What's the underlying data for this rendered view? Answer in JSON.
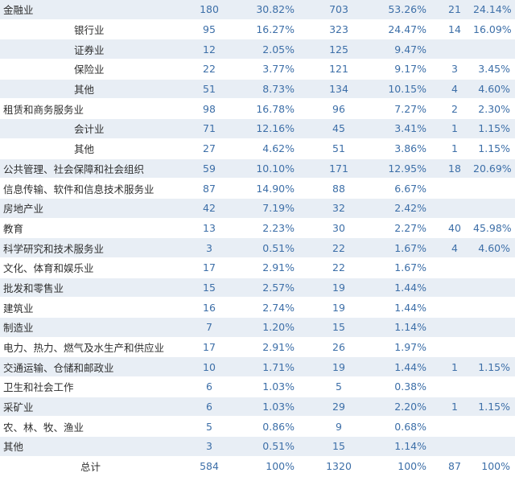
{
  "rows": [
    {
      "name": "金融业",
      "sub": false,
      "n1": "180",
      "p1": "30.82%",
      "n2": "703",
      "p2": "53.26%",
      "n3": "21",
      "p3": "24.14%"
    },
    {
      "name": "银行业",
      "sub": true,
      "n1": "95",
      "p1": "16.27%",
      "n2": "323",
      "p2": "24.47%",
      "n3": "14",
      "p3": "16.09%"
    },
    {
      "name": "证券业",
      "sub": true,
      "n1": "12",
      "p1": "2.05%",
      "n2": "125",
      "p2": "9.47%",
      "n3": "",
      "p3": ""
    },
    {
      "name": "保险业",
      "sub": true,
      "n1": "22",
      "p1": "3.77%",
      "n2": "121",
      "p2": "9.17%",
      "n3": "3",
      "p3": "3.45%"
    },
    {
      "name": "其他",
      "sub": true,
      "n1": "51",
      "p1": "8.73%",
      "n2": "134",
      "p2": "10.15%",
      "n3": "4",
      "p3": "4.60%"
    },
    {
      "name": "租赁和商务服务业",
      "sub": false,
      "n1": "98",
      "p1": "16.78%",
      "n2": "96",
      "p2": "7.27%",
      "n3": "2",
      "p3": "2.30%"
    },
    {
      "name": "会计业",
      "sub": true,
      "n1": "71",
      "p1": "12.16%",
      "n2": "45",
      "p2": "3.41%",
      "n3": "1",
      "p3": "1.15%"
    },
    {
      "name": "其他",
      "sub": true,
      "n1": "27",
      "p1": "4.62%",
      "n2": "51",
      "p2": "3.86%",
      "n3": "1",
      "p3": "1.15%"
    },
    {
      "name": "公共管理、社会保障和社会组织",
      "sub": false,
      "n1": "59",
      "p1": "10.10%",
      "n2": "171",
      "p2": "12.95%",
      "n3": "18",
      "p3": "20.69%"
    },
    {
      "name": "信息传输、软件和信息技术服务业",
      "sub": false,
      "n1": "87",
      "p1": "14.90%",
      "n2": "88",
      "p2": "6.67%",
      "n3": "",
      "p3": ""
    },
    {
      "name": "房地产业",
      "sub": false,
      "n1": "42",
      "p1": "7.19%",
      "n2": "32",
      "p2": "2.42%",
      "n3": "",
      "p3": ""
    },
    {
      "name": "教育",
      "sub": false,
      "n1": "13",
      "p1": "2.23%",
      "n2": "30",
      "p2": "2.27%",
      "n3": "40",
      "p3": "45.98%"
    },
    {
      "name": "科学研究和技术服务业",
      "sub": false,
      "n1": "3",
      "p1": "0.51%",
      "n2": "22",
      "p2": "1.67%",
      "n3": "4",
      "p3": "4.60%"
    },
    {
      "name": "文化、体育和娱乐业",
      "sub": false,
      "n1": "17",
      "p1": "2.91%",
      "n2": "22",
      "p2": "1.67%",
      "n3": "",
      "p3": ""
    },
    {
      "name": "批发和零售业",
      "sub": false,
      "n1": "15",
      "p1": "2.57%",
      "n2": "19",
      "p2": "1.44%",
      "n3": "",
      "p3": ""
    },
    {
      "name": "建筑业",
      "sub": false,
      "n1": "16",
      "p1": "2.74%",
      "n2": "19",
      "p2": "1.44%",
      "n3": "",
      "p3": ""
    },
    {
      "name": "制造业",
      "sub": false,
      "n1": "7",
      "p1": "1.20%",
      "n2": "15",
      "p2": "1.14%",
      "n3": "",
      "p3": ""
    },
    {
      "name": "电力、热力、燃气及水生产和供应业",
      "sub": false,
      "n1": "17",
      "p1": "2.91%",
      "n2": "26",
      "p2": "1.97%",
      "n3": "",
      "p3": ""
    },
    {
      "name": "交通运输、仓储和邮政业",
      "sub": false,
      "n1": "10",
      "p1": "1.71%",
      "n2": "19",
      "p2": "1.44%",
      "n3": "1",
      "p3": "1.15%"
    },
    {
      "name": "卫生和社会工作",
      "sub": false,
      "n1": "6",
      "p1": "1.03%",
      "n2": "5",
      "p2": "0.38%",
      "n3": "",
      "p3": ""
    },
    {
      "name": "采矿业",
      "sub": false,
      "n1": "6",
      "p1": "1.03%",
      "n2": "29",
      "p2": "2.20%",
      "n3": "1",
      "p3": "1.15%"
    },
    {
      "name": "农、林、牧、渔业",
      "sub": false,
      "n1": "5",
      "p1": "0.86%",
      "n2": "9",
      "p2": "0.68%",
      "n3": "",
      "p3": ""
    },
    {
      "name": "其他",
      "sub": false,
      "n1": "3",
      "p1": "0.51%",
      "n2": "15",
      "p2": "1.14%",
      "n3": "",
      "p3": ""
    }
  ],
  "total": {
    "name": "总计",
    "n1": "584",
    "p1": "100%",
    "n2": "1320",
    "p2": "100%",
    "n3": "87",
    "p3": "100%"
  },
  "colors": {
    "stripe": "#e8eef5",
    "number": "#3d6fa8",
    "text": "#2f2f2f"
  }
}
